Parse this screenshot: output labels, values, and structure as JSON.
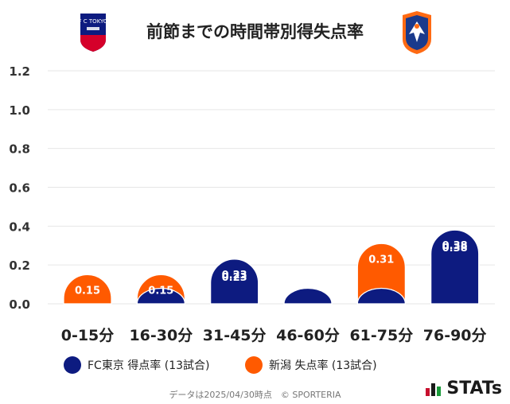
{
  "title": "前節までの時間帯別得失点率",
  "logos": {
    "left": "FC東京 crest",
    "right": "新潟 crest",
    "left_text": "F C TOKYO"
  },
  "colors": {
    "fc_tokyo": "#0d1b80",
    "niigata": "#ff5a00",
    "grid": "#e6e6e6",
    "axis_text": "#333333"
  },
  "legend": {
    "fc_tokyo": "FC東京 得点率 (13試合)",
    "niigata": "新潟 失点率 (13試合)"
  },
  "footer": {
    "text": "データは2025/04/30時点　© SPORTERIA"
  },
  "brand": {
    "name": "STATs"
  },
  "chart_data": {
    "type": "bar",
    "categories": [
      "0-15分",
      "16-30分",
      "31-45分",
      "46-60分",
      "61-75分",
      "76-90分"
    ],
    "ylim": [
      0,
      1.2
    ],
    "yticks": [
      "1.2",
      "1.0",
      "0.8",
      "0.6",
      "0.4",
      "0.2",
      "0.0"
    ],
    "ytick_values": [
      1.2,
      1.0,
      0.8,
      0.6,
      0.4,
      0.2,
      0.0
    ],
    "series": [
      {
        "name": "FC東京 得点率 (13試合)",
        "color": "#0d1b80",
        "values": [
          0.0,
          0.08,
          0.23,
          0.08,
          0.08,
          0.38
        ],
        "labels": [
          "",
          "",
          "0.23",
          "",
          "",
          "0.38"
        ]
      },
      {
        "name": "新潟 失点率 (13試合)",
        "color": "#ff5a00",
        "values": [
          0.15,
          0.15,
          0.23,
          0.08,
          0.31,
          0.38
        ],
        "labels": [
          "0.15",
          "0.15",
          "0.23",
          "",
          "0.31",
          "0.38"
        ]
      }
    ]
  }
}
